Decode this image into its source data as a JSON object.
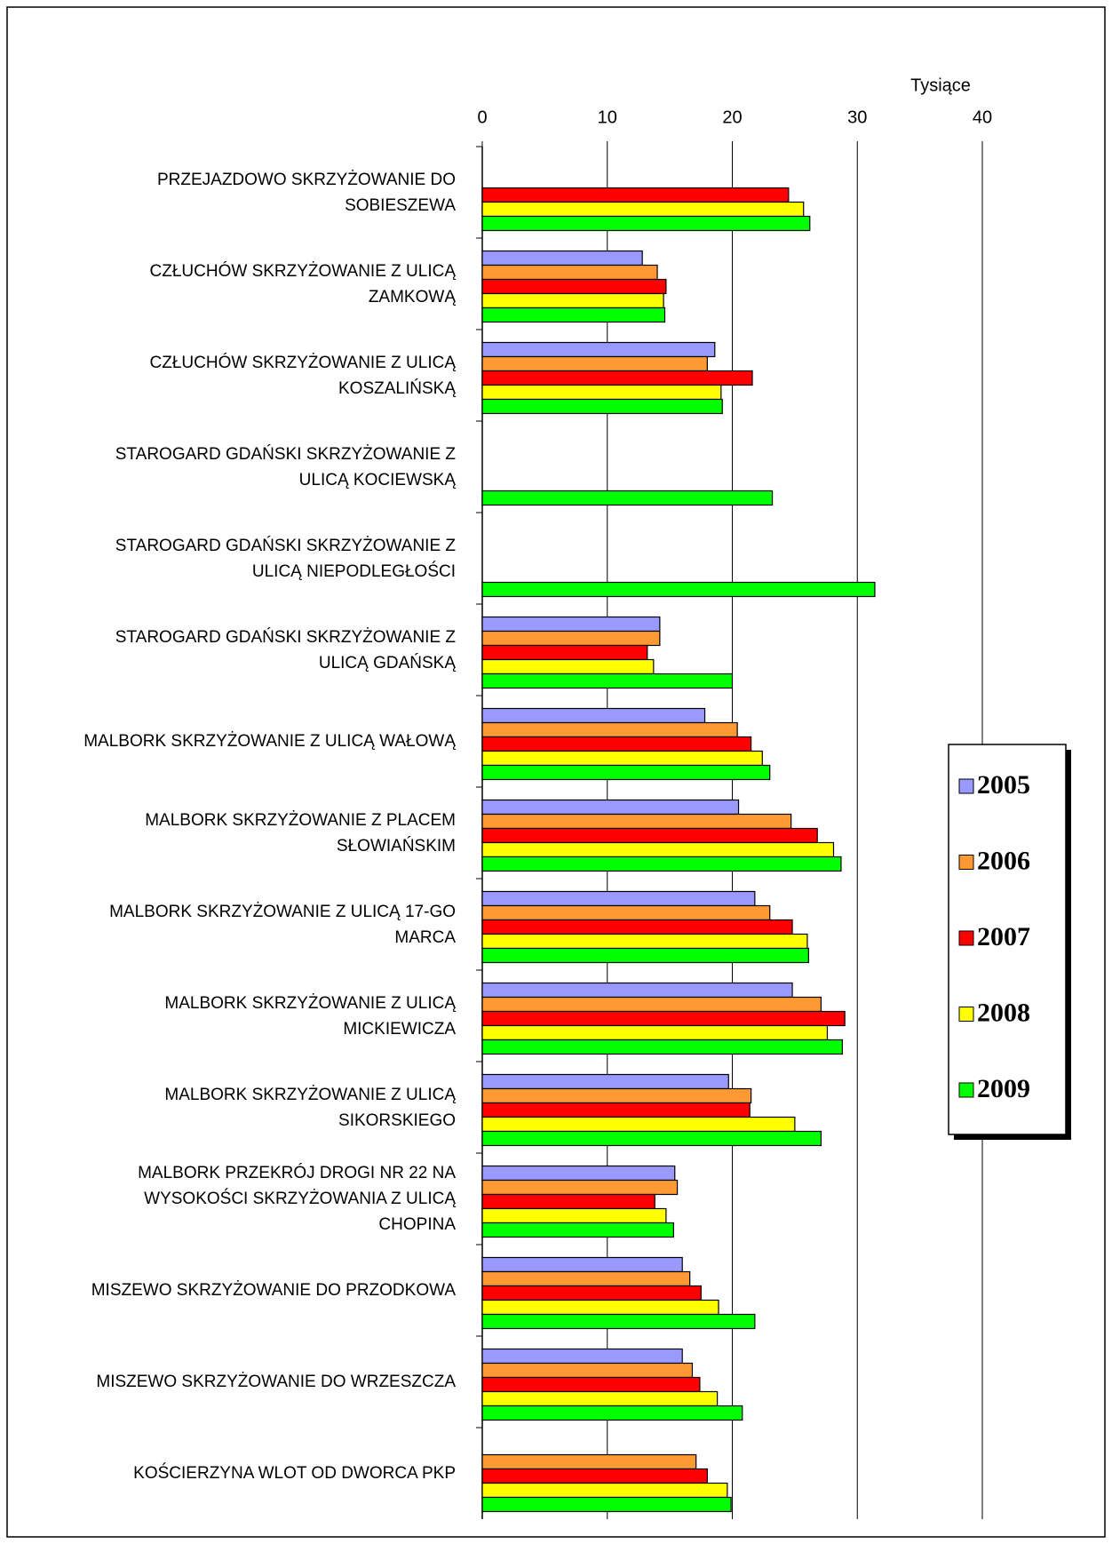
{
  "chart_data": {
    "type": "bar",
    "orientation": "horizontal",
    "xlabel": "Tysiące",
    "categories": [
      "PRZEJAZDOWO SKRZYŻOWANIE DO\nSOBIESZEWA",
      "CZŁUCHÓW SKRZYŻOWANIE Z ULICĄ\nZAMKOWĄ",
      "CZŁUCHÓW SKRZYŻOWANIE Z ULICĄ\nKOSZALIŃSKĄ",
      "STAROGARD GDAŃSKI SKRZYŻOWANIE Z\nULICĄ KOCIEWSKĄ",
      "STAROGARD GDAŃSKI SKRZYŻOWANIE Z\nULICĄ NIEPODLEGŁOŚCI",
      "STAROGARD GDAŃSKI SKRZYŻOWANIE Z\nULICĄ GDAŃSKĄ",
      "MALBORK SKRZYŻOWANIE Z ULICĄ WAŁOWĄ",
      "MALBORK SKRZYŻOWANIE Z PLACEM\nSŁOWIAŃSKIM",
      "MALBORK SKRZYŻOWANIE Z ULICĄ 17-GO\nMARCA",
      "MALBORK SKRZYŻOWANIE Z ULICĄ\nMICKIEWICZA",
      "MALBORK SKRZYŻOWANIE Z ULICĄ\nSIKORSKIEGO",
      "MALBORK PRZEKRÓJ DROGI NR 22 NA\nWYSOKOŚCI SKRZYŻOWANIA Z ULICĄ\nCHOPINA",
      "MISZEWO SKRZYŻOWANIE DO PRZODKOWA",
      "MISZEWO SKRZYŻOWANIE DO WRZESZCZA",
      "KOŚCIERZYNA WLOT OD DWORCA PKP"
    ],
    "series": [
      {
        "name": "2005",
        "color": "#9999ff",
        "values": [
          null,
          12.8,
          18.6,
          null,
          null,
          14.2,
          17.8,
          20.5,
          21.8,
          24.8,
          19.7,
          15.4,
          16.0,
          16.0,
          null
        ]
      },
      {
        "name": "2006",
        "color": "#ff9933",
        "values": [
          null,
          14.0,
          18.0,
          null,
          null,
          14.2,
          20.4,
          24.7,
          23.0,
          27.1,
          21.5,
          15.6,
          16.6,
          16.8,
          17.1
        ]
      },
      {
        "name": "2007",
        "color": "#ff0000",
        "values": [
          24.5,
          14.7,
          21.6,
          null,
          null,
          13.2,
          21.5,
          26.8,
          24.8,
          29.0,
          21.4,
          13.8,
          17.5,
          17.4,
          18.0
        ]
      },
      {
        "name": "2008",
        "color": "#ffff00",
        "values": [
          25.7,
          14.5,
          19.1,
          null,
          null,
          13.7,
          22.4,
          28.1,
          26.0,
          27.6,
          25.0,
          14.7,
          18.9,
          18.8,
          19.6
        ]
      },
      {
        "name": "2009",
        "color": "#00ff00",
        "values": [
          26.2,
          14.6,
          19.2,
          23.2,
          31.4,
          20.0,
          23.0,
          28.7,
          26.1,
          28.8,
          27.1,
          15.3,
          21.8,
          20.8,
          19.9
        ]
      }
    ],
    "xlim": [
      0,
      40
    ],
    "xticks": [
      0,
      10,
      20,
      30,
      40
    ],
    "grid": true,
    "legend": "right"
  }
}
